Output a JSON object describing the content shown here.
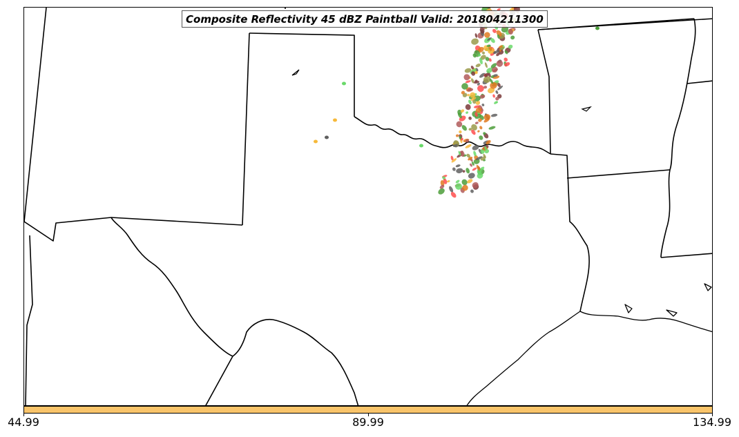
{
  "map": {
    "title": "Composite Reflectivity 45 dBZ Paintball Valid: 201804211300",
    "colorbar_color": "#f9c46a",
    "colorbar_ticks": [
      "44.99",
      "89.99",
      "134.99"
    ],
    "colorbar_range": [
      44.99,
      134.99
    ],
    "paintball_colors": [
      "#4c9e3a",
      "#6ad96a",
      "#f6b93a",
      "#ff4d4d",
      "#b05a5a",
      "#9a9a4a",
      "#e07a20",
      "#7a3a3a",
      "#606060"
    ]
  }
}
